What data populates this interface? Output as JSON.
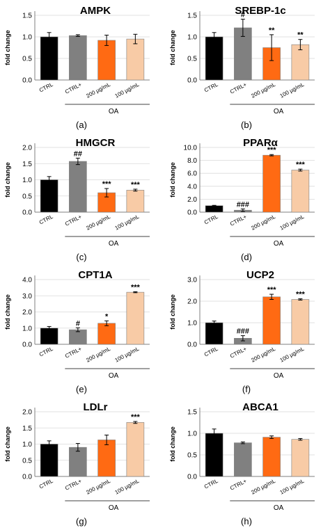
{
  "colors": {
    "CTRL": "#000000",
    "CTRL+": "#808080",
    "200 µg/mL": "#ff6a13",
    "100 µg/mL": "#f8cba6"
  },
  "group_label": "OA",
  "chart_data": [
    {
      "type": "bar",
      "panel": "(a)",
      "title": "AMPK",
      "ylabel": "fold change",
      "categories": [
        "CTRL",
        "CTRL+",
        "200 µg/mL",
        "100 µg/mL"
      ],
      "values": [
        1.0,
        1.03,
        0.92,
        0.95
      ],
      "errors": [
        0.1,
        0.02,
        0.12,
        0.11
      ],
      "significance": [
        "",
        "",
        "",
        ""
      ],
      "ylim": [
        0,
        1.5
      ],
      "yticks": [
        "0.0",
        "0.5",
        "1.0",
        "1.5"
      ]
    },
    {
      "type": "bar",
      "panel": "(b)",
      "title": "SREBP-1c",
      "ylabel": "fold change",
      "categories": [
        "CTRL",
        "CTRL+",
        "200 µg/mL",
        "100 µg/mL"
      ],
      "values": [
        1.0,
        1.21,
        0.75,
        0.82
      ],
      "errors": [
        0.1,
        0.2,
        0.3,
        0.12
      ],
      "significance": [
        "",
        "#",
        "**",
        "**"
      ],
      "ylim": [
        0,
        1.5
      ],
      "yticks": [
        "0.0",
        "0.5",
        "1.0",
        "1.5"
      ]
    },
    {
      "type": "bar",
      "panel": "(c)",
      "title": "HMGCR",
      "ylabel": "fold change",
      "categories": [
        "CTRL",
        "CTRL+",
        "200 µg/mL",
        "100 µg/mL"
      ],
      "values": [
        1.0,
        1.57,
        0.6,
        0.68
      ],
      "errors": [
        0.1,
        0.1,
        0.13,
        0.03
      ],
      "significance": [
        "",
        "##",
        "***",
        "***"
      ],
      "ylim": [
        0,
        2.0
      ],
      "yticks": [
        "0.0",
        "0.5",
        "1.0",
        "1.5",
        "2.0"
      ]
    },
    {
      "type": "bar",
      "panel": "(d)",
      "title": "PPARα",
      "ylabel": "fold change",
      "categories": [
        "CTRL",
        "CTRL+",
        "200 µg/mL",
        "100 µg/mL"
      ],
      "values": [
        1.0,
        0.3,
        8.8,
        6.5
      ],
      "errors": [
        0.05,
        0.2,
        0.1,
        0.15
      ],
      "significance": [
        "",
        "###",
        "***",
        "***"
      ],
      "ylim": [
        0,
        10.0
      ],
      "yticks": [
        "0.0",
        "2.0",
        "4.0",
        "6.0",
        "8.0",
        "10.0"
      ]
    },
    {
      "type": "bar",
      "panel": "(e)",
      "title": "CPT1A",
      "ylabel": "fold change",
      "categories": [
        "CTRL",
        "CTRL+",
        "200 µg/mL",
        "100 µg/mL"
      ],
      "values": [
        1.0,
        0.9,
        1.3,
        3.22
      ],
      "errors": [
        0.1,
        0.12,
        0.15,
        0.03
      ],
      "significance": [
        "",
        "#",
        "*",
        "***"
      ],
      "ylim": [
        0,
        4.0
      ],
      "yticks": [
        "0.0",
        "1.0",
        "2.0",
        "3.0",
        "4.0"
      ]
    },
    {
      "type": "bar",
      "panel": "(f)",
      "title": "UCP2",
      "ylabel": "fold change",
      "categories": [
        "CTRL",
        "CTRL+",
        "200 µg/mL",
        "100 µg/mL"
      ],
      "values": [
        1.0,
        0.28,
        2.2,
        2.08
      ],
      "errors": [
        0.08,
        0.12,
        0.12,
        0.03
      ],
      "significance": [
        "",
        "###",
        "***",
        "***"
      ],
      "ylim": [
        0,
        3.0
      ],
      "yticks": [
        "0.0",
        "1.0",
        "2.0",
        "3.0"
      ]
    },
    {
      "type": "bar",
      "panel": "(g)",
      "title": "LDLr",
      "ylabel": "fold change",
      "categories": [
        "CTRL",
        "CTRL+",
        "200 µg/mL",
        "100 µg/mL"
      ],
      "values": [
        1.0,
        0.9,
        1.13,
        1.67
      ],
      "errors": [
        0.1,
        0.12,
        0.15,
        0.03
      ],
      "significance": [
        "",
        "",
        "",
        "***"
      ],
      "ylim": [
        0,
        2.0
      ],
      "yticks": [
        "0.0",
        "0.5",
        "1.0",
        "1.5",
        "2.0"
      ]
    },
    {
      "type": "bar",
      "panel": "(h)",
      "title": "ABCA1",
      "ylabel": "fold change",
      "categories": [
        "CTRL",
        "CTRL+",
        "200 µg/mL",
        "100 µg/mL"
      ],
      "values": [
        1.0,
        0.78,
        0.91,
        0.86
      ],
      "errors": [
        0.1,
        0.02,
        0.03,
        0.02
      ],
      "significance": [
        "",
        "",
        "",
        ""
      ],
      "ylim": [
        0,
        1.5
      ],
      "yticks": [
        "0.0",
        "0.5",
        "1.0",
        "1.5"
      ]
    }
  ]
}
